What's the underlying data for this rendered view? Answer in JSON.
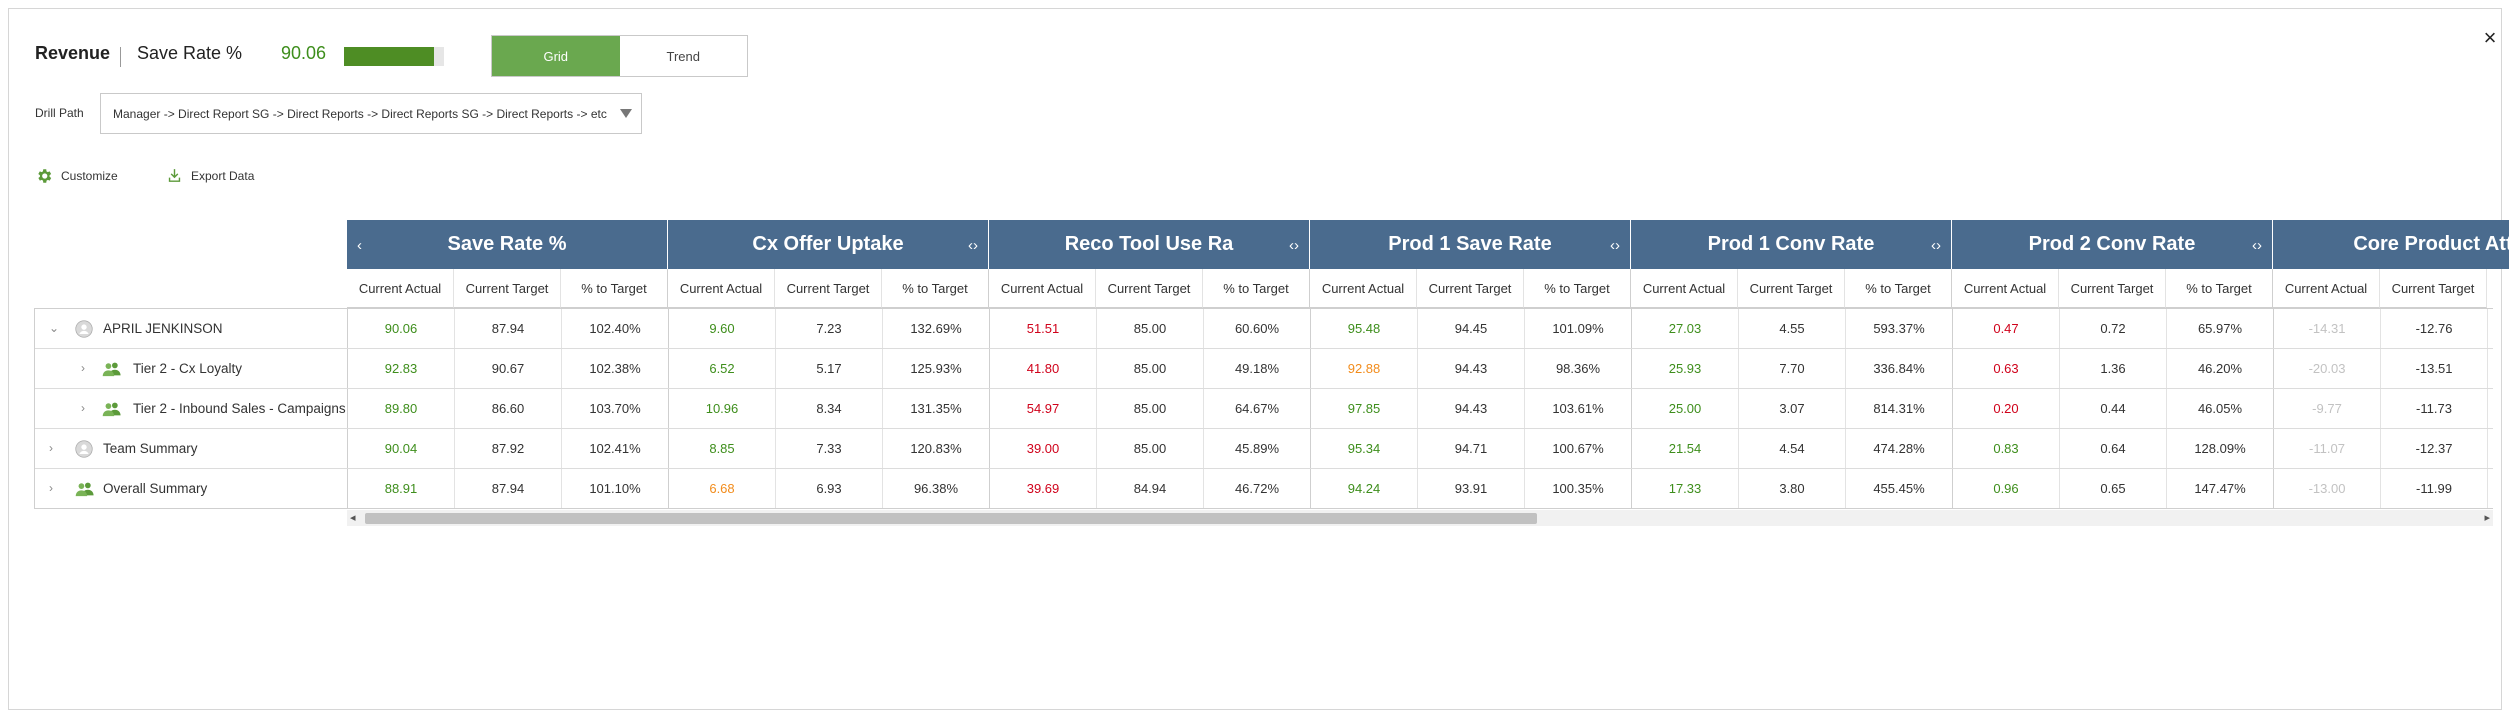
{
  "header": {
    "title": "Revenue",
    "metric_name": "Save Rate %",
    "metric_value": "90.06",
    "metric_bar_fill": 0.9006,
    "accent_color": "#4e8d24"
  },
  "view_toggle": {
    "grid_label": "Grid",
    "trend_label": "Trend",
    "selected": "Grid"
  },
  "drill_path": {
    "label": "Drill Path",
    "value": "Manager -> Direct Report SG -> Direct Reports -> Direct Reports SG -> Direct Reports -> etc"
  },
  "toolbar": {
    "customize_label": "Customize",
    "export_label": "Export Data"
  },
  "close_icon": "×",
  "table": {
    "groups": [
      {
        "name": "Save Rate %",
        "left_arrow": "‹",
        "right_arrow": ""
      },
      {
        "name": "Cx Offer Uptake",
        "left_arrow": "",
        "right_arrow": "‹›"
      },
      {
        "name": "Reco Tool Use Ra",
        "left_arrow": "",
        "right_arrow": "‹›"
      },
      {
        "name": "Prod 1 Save Rate",
        "left_arrow": "",
        "right_arrow": "‹›"
      },
      {
        "name": "Prod 1 Conv Rate",
        "left_arrow": "",
        "right_arrow": "‹›"
      },
      {
        "name": "Prod 2 Conv Rate",
        "left_arrow": "",
        "right_arrow": "‹›"
      },
      {
        "name": "Core Product Att",
        "left_arrow": "",
        "right_arrow": "‹›"
      }
    ],
    "sub_columns": [
      "Current Actual",
      "Current Target",
      "% to Target",
      "Current Actual",
      "Current Target",
      "% to Target",
      "Current Actual",
      "Current Target",
      "% to Target",
      "Current Actual",
      "Current Target",
      "% to Target",
      "Current Actual",
      "Current Target",
      "% to Target",
      "Current Actual",
      "Current Target",
      "% to Target",
      "Current Actual",
      "Current Target"
    ],
    "status_colors": {
      "green": "#3e8e1c",
      "red": "#d0021b",
      "orange": "#f28c1c",
      "grey": "#c2c2c2"
    },
    "rows": [
      {
        "name": "APRIL JENKINSON",
        "chevron": "⌄",
        "icon": "user-icon",
        "cells": [
          {
            "v": "90.06",
            "c": "green"
          },
          {
            "v": "87.94",
            "c": "dark"
          },
          {
            "v": "102.40%",
            "c": "dark"
          },
          {
            "v": "9.60",
            "c": "green"
          },
          {
            "v": "7.23",
            "c": "dark"
          },
          {
            "v": "132.69%",
            "c": "dark"
          },
          {
            "v": "51.51",
            "c": "red"
          },
          {
            "v": "85.00",
            "c": "dark"
          },
          {
            "v": "60.60%",
            "c": "dark"
          },
          {
            "v": "95.48",
            "c": "green"
          },
          {
            "v": "94.45",
            "c": "dark"
          },
          {
            "v": "101.09%",
            "c": "dark"
          },
          {
            "v": "27.03",
            "c": "green"
          },
          {
            "v": "4.55",
            "c": "dark"
          },
          {
            "v": "593.37%",
            "c": "dark"
          },
          {
            "v": "0.47",
            "c": "red"
          },
          {
            "v": "0.72",
            "c": "dark"
          },
          {
            "v": "65.97%",
            "c": "dark"
          },
          {
            "v": "-14.31",
            "c": "grey"
          },
          {
            "v": "-12.76",
            "c": "dark"
          }
        ]
      },
      {
        "name": "Tier 2 - Cx Loyalty",
        "chevron": "›",
        "icon": "group-icon",
        "cells": [
          {
            "v": "92.83",
            "c": "green"
          },
          {
            "v": "90.67",
            "c": "dark"
          },
          {
            "v": "102.38%",
            "c": "dark"
          },
          {
            "v": "6.52",
            "c": "green"
          },
          {
            "v": "5.17",
            "c": "dark"
          },
          {
            "v": "125.93%",
            "c": "dark"
          },
          {
            "v": "41.80",
            "c": "red"
          },
          {
            "v": "85.00",
            "c": "dark"
          },
          {
            "v": "49.18%",
            "c": "dark"
          },
          {
            "v": "92.88",
            "c": "orange"
          },
          {
            "v": "94.43",
            "c": "dark"
          },
          {
            "v": "98.36%",
            "c": "dark"
          },
          {
            "v": "25.93",
            "c": "green"
          },
          {
            "v": "7.70",
            "c": "dark"
          },
          {
            "v": "336.84%",
            "c": "dark"
          },
          {
            "v": "0.63",
            "c": "red"
          },
          {
            "v": "1.36",
            "c": "dark"
          },
          {
            "v": "46.20%",
            "c": "dark"
          },
          {
            "v": "-20.03",
            "c": "grey"
          },
          {
            "v": "-13.51",
            "c": "dark"
          }
        ]
      },
      {
        "name": "Tier 2 - Inbound Sales - Campaigns",
        "chevron": "›",
        "icon": "group-icon",
        "cells": [
          {
            "v": "89.80",
            "c": "green"
          },
          {
            "v": "86.60",
            "c": "dark"
          },
          {
            "v": "103.70%",
            "c": "dark"
          },
          {
            "v": "10.96",
            "c": "green"
          },
          {
            "v": "8.34",
            "c": "dark"
          },
          {
            "v": "131.35%",
            "c": "dark"
          },
          {
            "v": "54.97",
            "c": "red"
          },
          {
            "v": "85.00",
            "c": "dark"
          },
          {
            "v": "64.67%",
            "c": "dark"
          },
          {
            "v": "97.85",
            "c": "green"
          },
          {
            "v": "94.43",
            "c": "dark"
          },
          {
            "v": "103.61%",
            "c": "dark"
          },
          {
            "v": "25.00",
            "c": "green"
          },
          {
            "v": "3.07",
            "c": "dark"
          },
          {
            "v": "814.31%",
            "c": "dark"
          },
          {
            "v": "0.20",
            "c": "red"
          },
          {
            "v": "0.44",
            "c": "dark"
          },
          {
            "v": "46.05%",
            "c": "dark"
          },
          {
            "v": "-9.77",
            "c": "grey"
          },
          {
            "v": "-11.73",
            "c": "dark"
          }
        ]
      },
      {
        "name": "Team Summary",
        "chevron": "›",
        "icon": "user-icon",
        "cells": [
          {
            "v": "90.04",
            "c": "green"
          },
          {
            "v": "87.92",
            "c": "dark"
          },
          {
            "v": "102.41%",
            "c": "dark"
          },
          {
            "v": "8.85",
            "c": "green"
          },
          {
            "v": "7.33",
            "c": "dark"
          },
          {
            "v": "120.83%",
            "c": "dark"
          },
          {
            "v": "39.00",
            "c": "red"
          },
          {
            "v": "85.00",
            "c": "dark"
          },
          {
            "v": "45.89%",
            "c": "dark"
          },
          {
            "v": "95.34",
            "c": "green"
          },
          {
            "v": "94.71",
            "c": "dark"
          },
          {
            "v": "100.67%",
            "c": "dark"
          },
          {
            "v": "21.54",
            "c": "green"
          },
          {
            "v": "4.54",
            "c": "dark"
          },
          {
            "v": "474.28%",
            "c": "dark"
          },
          {
            "v": "0.83",
            "c": "green"
          },
          {
            "v": "0.64",
            "c": "dark"
          },
          {
            "v": "128.09%",
            "c": "dark"
          },
          {
            "v": "-11.07",
            "c": "grey"
          },
          {
            "v": "-12.37",
            "c": "dark"
          }
        ]
      },
      {
        "name": "Overall Summary",
        "chevron": "›",
        "icon": "group-icon",
        "cells": [
          {
            "v": "88.91",
            "c": "green"
          },
          {
            "v": "87.94",
            "c": "dark"
          },
          {
            "v": "101.10%",
            "c": "dark"
          },
          {
            "v": "6.68",
            "c": "orange"
          },
          {
            "v": "6.93",
            "c": "dark"
          },
          {
            "v": "96.38%",
            "c": "dark"
          },
          {
            "v": "39.69",
            "c": "red"
          },
          {
            "v": "84.94",
            "c": "dark"
          },
          {
            "v": "46.72%",
            "c": "dark"
          },
          {
            "v": "94.24",
            "c": "green"
          },
          {
            "v": "93.91",
            "c": "dark"
          },
          {
            "v": "100.35%",
            "c": "dark"
          },
          {
            "v": "17.33",
            "c": "green"
          },
          {
            "v": "3.80",
            "c": "dark"
          },
          {
            "v": "455.45%",
            "c": "dark"
          },
          {
            "v": "0.96",
            "c": "green"
          },
          {
            "v": "0.65",
            "c": "dark"
          },
          {
            "v": "147.47%",
            "c": "dark"
          },
          {
            "v": "-13.00",
            "c": "grey"
          },
          {
            "v": "-11.99",
            "c": "dark"
          }
        ]
      }
    ]
  },
  "scrollbar": {
    "left_arrow": "◂",
    "right_arrow": "▸"
  }
}
